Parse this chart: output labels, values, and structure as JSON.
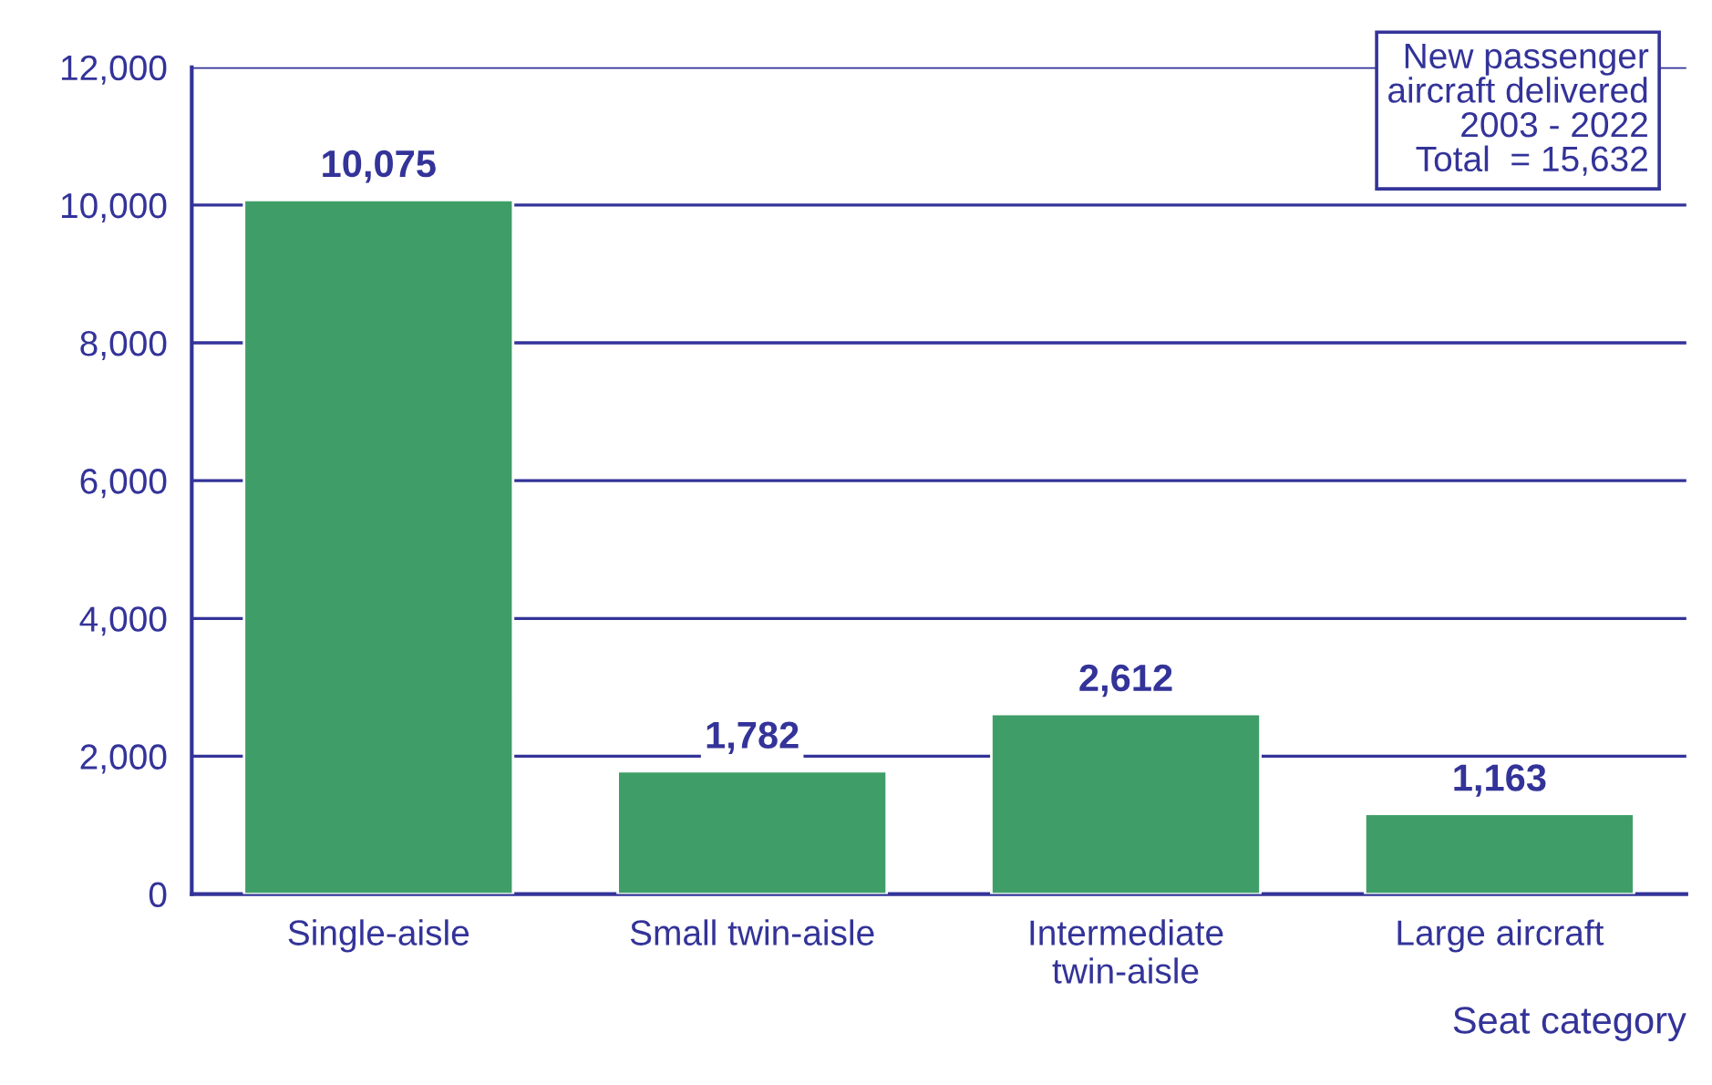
{
  "chart_data": {
    "type": "bar",
    "categories": [
      "Single-aisle",
      "Small twin-aisle",
      "Intermediate\ntwin-aisle",
      "Large aircraft"
    ],
    "values": [
      10075,
      1782,
      2612,
      1163
    ],
    "color": "#3f9e68",
    "xlabel": "Seat category",
    "ylim": [
      0,
      12000
    ],
    "yticks": [
      {
        "value": 0,
        "label": "0"
      },
      {
        "value": 2000,
        "label": "2,000"
      },
      {
        "value": 4000,
        "label": "4,000"
      },
      {
        "value": 6000,
        "label": "6,000"
      },
      {
        "value": 8000,
        "label": "8,000"
      },
      {
        "value": 10000,
        "label": "10,000"
      },
      {
        "value": 12000,
        "label": "12,000"
      }
    ],
    "value_labels": [
      "10,075",
      "1,782",
      "2,612",
      "1,163"
    ],
    "grid": "y",
    "annotations": [
      "New passenger\naircraft delivered\n2003 - 2022\nTotal  = 15,632"
    ]
  }
}
